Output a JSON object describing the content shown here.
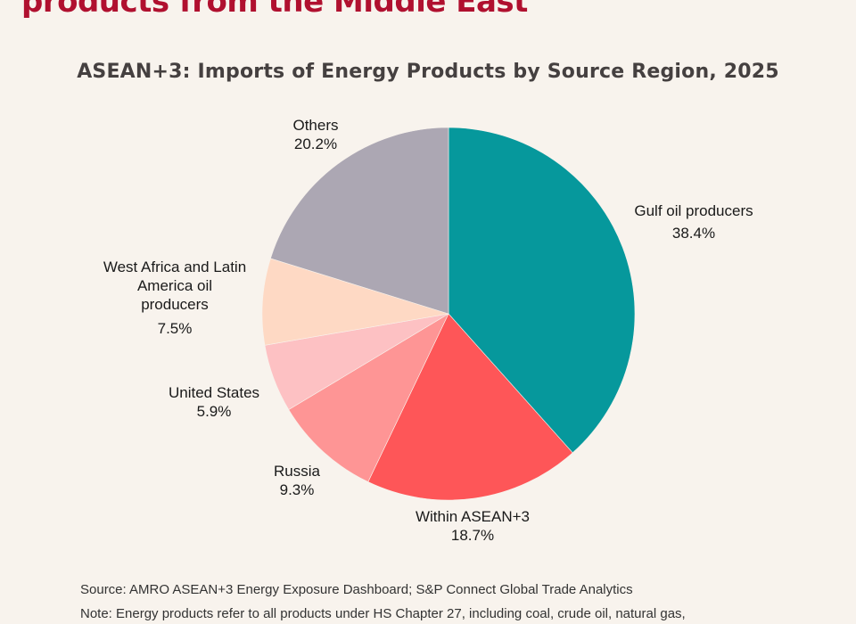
{
  "header": {
    "headline": "products from the Middle East"
  },
  "chart_data": {
    "type": "pie",
    "title": "ASEAN+3: Imports of Energy Products by Source Region, 2025",
    "start_angle": "12 o'clock",
    "direction": "clockwise",
    "slices": [
      {
        "label": "Gulf oil producers",
        "value": 38.4,
        "display": "38.4%",
        "color": "#06989c"
      },
      {
        "label": "Within ASEAN+3",
        "value": 18.7,
        "display": "18.7%",
        "color": "#fe5658"
      },
      {
        "label": "Russia",
        "value": 9.3,
        "display": "9.3%",
        "color": "#fe9595"
      },
      {
        "label": "United States",
        "value": 5.9,
        "display": "5.9%",
        "color": "#fdc1c3"
      },
      {
        "label": "West Africa and Latin America oil producers",
        "label_lines": [
          "West Africa and Latin",
          "America oil",
          "producers"
        ],
        "value": 7.5,
        "display": "7.5%",
        "color": "#fed9c4"
      },
      {
        "label": "Others",
        "value": 20.2,
        "display": "20.2%",
        "color": "#aca7b3"
      }
    ]
  },
  "footer": {
    "source": "Source: AMRO ASEAN+3 Energy Exposure Dashboard; S&P Connect Global Trade Analytics",
    "note": "Note: Energy products refer to all products under HS Chapter 27, including coal, crude oil, natural gas,"
  }
}
